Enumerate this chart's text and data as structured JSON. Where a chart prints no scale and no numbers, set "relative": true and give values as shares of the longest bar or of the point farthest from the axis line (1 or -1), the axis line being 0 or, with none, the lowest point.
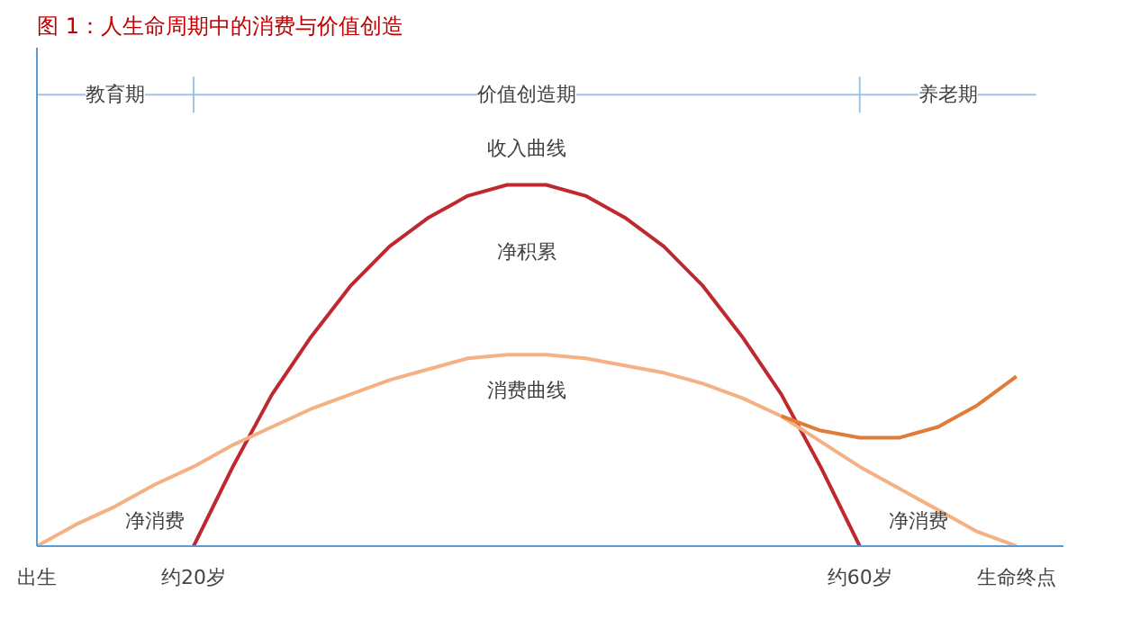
{
  "chart_data": {
    "type": "line",
    "title": "图 1：人生命周期中的消费与价值创造",
    "relative": true,
    "tick_labels": "x",
    "grid": false,
    "marker": "none",
    "line_style": "solid",
    "categories": [
      "出生",
      null,
      null,
      null,
      "约20岁",
      null,
      null,
      null,
      null,
      null,
      null,
      null,
      null,
      null,
      null,
      null,
      null,
      null,
      null,
      null,
      null,
      "约60岁",
      null,
      null,
      null,
      "生命终点"
    ],
    "series": [
      {
        "color": "#c0282f",
        "values": [
          null,
          null,
          null,
          null,
          0,
          0.22,
          0.42,
          0.58,
          0.72,
          0.83,
          0.91,
          0.97,
          1.0,
          1.0,
          0.97,
          0.91,
          0.83,
          0.72,
          0.58,
          0.42,
          0.22,
          0,
          null,
          null,
          null,
          null
        ]
      },
      {
        "color": "#f4b183",
        "values": [
          0,
          0.06,
          0.11,
          0.17,
          0.22,
          0.28,
          0.33,
          0.38,
          0.42,
          0.46,
          0.49,
          0.52,
          0.53,
          0.53,
          0.52,
          0.5,
          0.48,
          0.45,
          0.41,
          0.36,
          0.29,
          0.22,
          0.16,
          0.1,
          0.04,
          0
        ]
      },
      {
        "color": "#e07b39",
        "values": [
          null,
          null,
          null,
          null,
          null,
          null,
          null,
          null,
          null,
          null,
          null,
          null,
          null,
          null,
          null,
          null,
          null,
          null,
          null,
          0.36,
          0.32,
          0.3,
          0.3,
          0.33,
          0.39,
          0.47
        ]
      }
    ],
    "annotations": [
      "教育期",
      "价值创造期",
      "养老期",
      "收入曲线",
      "净积累",
      "消费曲线",
      "净消费",
      "净消费"
    ]
  }
}
